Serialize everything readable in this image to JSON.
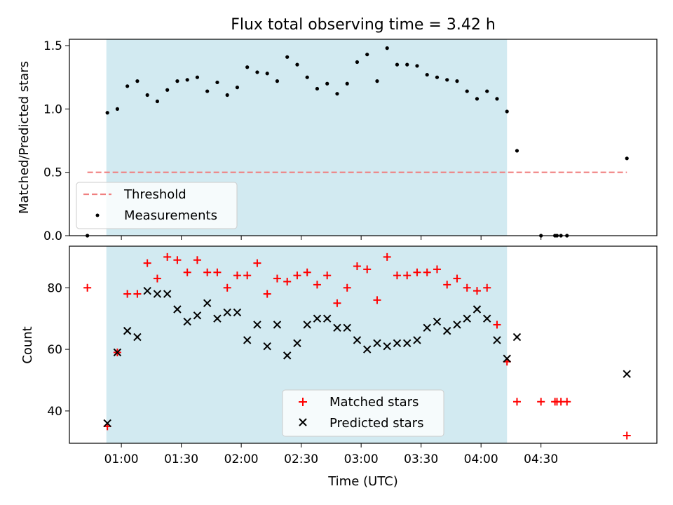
{
  "chart_data": [
    {
      "type": "scatter",
      "title": "Flux total observing time = 3.42 h",
      "ylabel": "Matched/Predicted stars",
      "ylim": [
        0,
        1.55
      ],
      "yticks": [
        0.0,
        0.5,
        1.0,
        1.5
      ],
      "ytick_labels": [
        "0.0",
        "0.5",
        "1.0",
        "1.5"
      ],
      "grid": false,
      "legend": "lower-left",
      "shaded_region": {
        "x_start": 52.5,
        "x_end": 253,
        "color": "#add8e6"
      },
      "series": [
        {
          "name": "Threshold",
          "kind": "line",
          "style": "dashed",
          "color": "#f08080",
          "x": [
            43,
            313
          ],
          "y": [
            0.5,
            0.5
          ]
        },
        {
          "name": "Measurements",
          "kind": "scatter",
          "color": "#000000",
          "x": [
            43,
            53,
            58,
            63,
            68,
            73,
            78,
            83,
            88,
            93,
            98,
            103,
            108,
            113,
            118,
            123,
            128,
            133,
            138,
            143,
            148,
            153,
            158,
            163,
            168,
            173,
            178,
            183,
            188,
            193,
            198,
            203,
            208,
            213,
            218,
            223,
            228,
            233,
            238,
            243,
            248,
            253,
            258,
            270,
            277,
            278,
            280,
            283,
            313
          ],
          "y": [
            0.0,
            0.97,
            1.0,
            1.18,
            1.22,
            1.11,
            1.06,
            1.15,
            1.22,
            1.23,
            1.25,
            1.14,
            1.21,
            1.11,
            1.17,
            1.33,
            1.29,
            1.28,
            1.22,
            1.41,
            1.35,
            1.25,
            1.16,
            1.2,
            1.12,
            1.2,
            1.37,
            1.43,
            1.22,
            1.48,
            1.35,
            1.35,
            1.34,
            1.27,
            1.25,
            1.23,
            1.22,
            1.14,
            1.08,
            1.14,
            1.08,
            0.98,
            0.67,
            0.0,
            0.0,
            0.0,
            0.0,
            0.0,
            0.61
          ]
        }
      ]
    },
    {
      "type": "scatter",
      "xlabel": "Time (UTC)",
      "ylabel": "Count",
      "xlim": [
        34,
        328
      ],
      "ylim": [
        29.5,
        93.5
      ],
      "xticks": [
        60,
        90,
        120,
        150,
        180,
        210,
        240,
        270
      ],
      "xtick_labels": [
        "01:00",
        "01:30",
        "02:00",
        "02:30",
        "03:00",
        "03:30",
        "04:00",
        "04:30"
      ],
      "yticks": [
        40,
        60,
        80
      ],
      "ytick_labels": [
        "40",
        "60",
        "80"
      ],
      "grid": false,
      "legend": "lower-center",
      "shaded_region": {
        "x_start": 52.5,
        "x_end": 253,
        "color": "#add8e6"
      },
      "series": [
        {
          "name": "Matched stars",
          "marker": "plus",
          "color": "#ff0000",
          "x": [
            43,
            53,
            58,
            63,
            68,
            73,
            78,
            83,
            88,
            93,
            98,
            103,
            108,
            113,
            118,
            123,
            128,
            133,
            138,
            143,
            148,
            153,
            158,
            163,
            168,
            173,
            178,
            183,
            188,
            193,
            198,
            203,
            208,
            213,
            218,
            223,
            228,
            233,
            238,
            243,
            248,
            253,
            258,
            270,
            277,
            278,
            280,
            283,
            313
          ],
          "y": [
            80,
            35,
            59,
            78,
            78,
            88,
            83,
            90,
            89,
            85,
            89,
            85,
            85,
            80,
            84,
            84,
            88,
            78,
            83,
            82,
            84,
            85,
            81,
            84,
            75,
            80,
            87,
            86,
            76,
            90,
            84,
            84,
            85,
            85,
            86,
            81,
            83,
            80,
            79,
            80,
            68,
            56,
            43,
            43,
            43,
            43,
            43,
            43,
            32
          ]
        },
        {
          "name": "Predicted stars",
          "marker": "x",
          "color": "#000000",
          "x": [
            53,
            58,
            63,
            68,
            73,
            78,
            83,
            88,
            93,
            98,
            103,
            108,
            113,
            118,
            123,
            128,
            133,
            138,
            143,
            148,
            153,
            158,
            163,
            168,
            173,
            178,
            183,
            188,
            193,
            198,
            203,
            208,
            213,
            218,
            223,
            228,
            233,
            238,
            243,
            248,
            253,
            258,
            313
          ],
          "y": [
            36,
            59,
            66,
            64,
            79,
            78,
            78,
            73,
            69,
            71,
            75,
            70,
            72,
            72,
            63,
            68,
            61,
            68,
            58,
            62,
            68,
            70,
            70,
            67,
            67,
            63,
            60,
            62,
            61,
            62,
            62,
            63,
            67,
            69,
            66,
            68,
            70,
            73,
            70,
            63,
            57,
            64,
            52
          ]
        }
      ]
    }
  ]
}
